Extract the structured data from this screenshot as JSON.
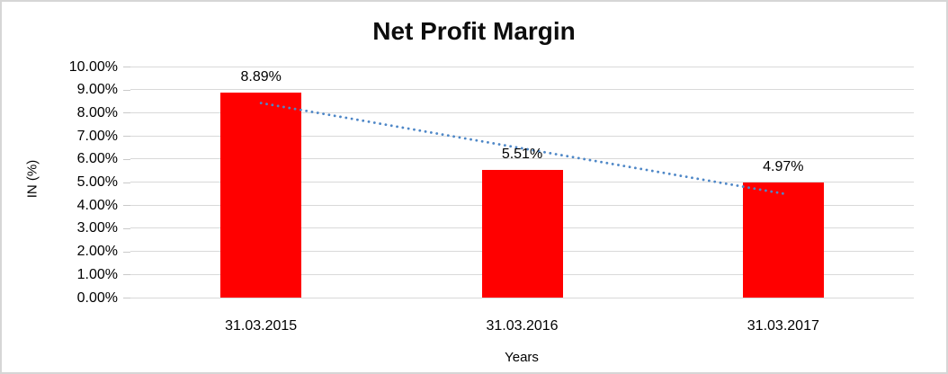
{
  "frame": {
    "background": "#ffffff",
    "border_color": "#d6d6d6"
  },
  "chart_data": {
    "type": "bar",
    "title": "Net Profit Margin",
    "xlabel": "Years",
    "ylabel": "IN (%)",
    "categories": [
      "31.03.2015",
      "31.03.2016",
      "31.03.2017"
    ],
    "values": [
      8.89,
      5.51,
      4.97
    ],
    "data_labels": [
      "8.89%",
      "5.51%",
      "4.97%"
    ],
    "ylim": [
      0,
      10
    ],
    "ytick_step": 1,
    "ytick_labels": [
      "10.00%",
      "9.00%",
      "8.00%",
      "7.00%",
      "6.00%",
      "5.00%",
      "4.00%",
      "3.00%",
      "2.00%",
      "1.00%",
      "0.00%"
    ],
    "grid": true,
    "legend": "none",
    "colors": {
      "bar": "#ff0000",
      "gridline": "#d9d9d9",
      "tick_mark": "#c9c9c9",
      "text": "#000000",
      "title": "#0d0d0d",
      "trendline": "#4e87c7"
    },
    "trendline": {
      "type": "linear",
      "style": "dotted",
      "start_value": 8.42,
      "end_value": 4.5
    }
  }
}
